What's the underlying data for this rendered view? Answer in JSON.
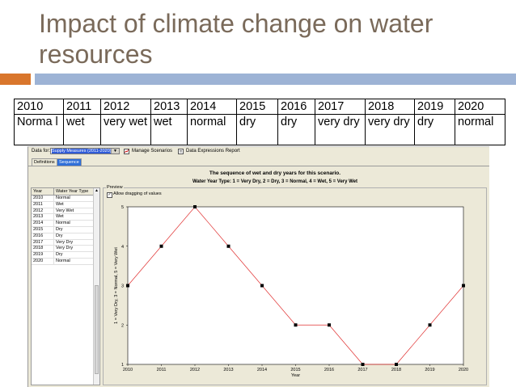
{
  "slide": {
    "title": "Impact of climate change on water resources",
    "accent_colors": {
      "orange": "#d9762c",
      "blue": "#9db3d5"
    }
  },
  "table": {
    "years": [
      "2010",
      "2011",
      "2012",
      "2013",
      "2014",
      "2015",
      "2016",
      "2017",
      "2018",
      "2019",
      "2020"
    ],
    "types": [
      "Norma l",
      "wet",
      "very wet",
      "wet",
      "normal",
      "dry",
      "dry",
      "very dry",
      "very dry",
      "dry",
      "normal"
    ]
  },
  "app": {
    "data_for_label": "Data for:",
    "data_for_value": "Supply Measures (2011-2020)",
    "manage_scenarios_label": "Manage Scenarios",
    "data_expressions_label": "Data Expressions Report",
    "tabs": [
      "Definitions",
      "Sequence"
    ],
    "active_tab": "Sequence",
    "sequence_title": "The sequence of wet and dry years for this scenario.",
    "sequence_subtitle": "Water Year Type: 1 = Very Dry, 2 = Dry, 3 = Normal, 4 = Wet, 5 = Very Wet",
    "grid": {
      "headers": [
        "Year",
        "Water Year Type"
      ],
      "rows": [
        [
          "2010",
          "Normal"
        ],
        [
          "2011",
          "Wet"
        ],
        [
          "2012",
          "Very Wet"
        ],
        [
          "2013",
          "Wet"
        ],
        [
          "2014",
          "Normal"
        ],
        [
          "2015",
          "Dry"
        ],
        [
          "2016",
          "Dry"
        ],
        [
          "2017",
          "Very Dry"
        ],
        [
          "2018",
          "Very Dry"
        ],
        [
          "2019",
          "Dry"
        ],
        [
          "2020",
          "Normal"
        ]
      ]
    },
    "preview_label": "Preview",
    "allow_drag_label": "Allow dragging of values",
    "allow_drag_checked": true
  },
  "chart_data": {
    "type": "line",
    "x": [
      "2010",
      "2011",
      "2012",
      "2013",
      "2014",
      "2015",
      "2016",
      "2017",
      "2018",
      "2019",
      "2020"
    ],
    "series": [
      {
        "values": [
          3,
          4,
          5,
          4,
          3,
          2,
          2,
          1,
          1,
          2,
          3
        ],
        "color": "#e03030",
        "marker_color": "#000000"
      }
    ],
    "xlabel": "Year",
    "ylabel": "1 = Very Dry, 3 = Normal, 5 = Very Wet",
    "ylim": [
      1,
      5
    ],
    "yticks": [
      1,
      2,
      3,
      4,
      5
    ],
    "grid": false
  }
}
